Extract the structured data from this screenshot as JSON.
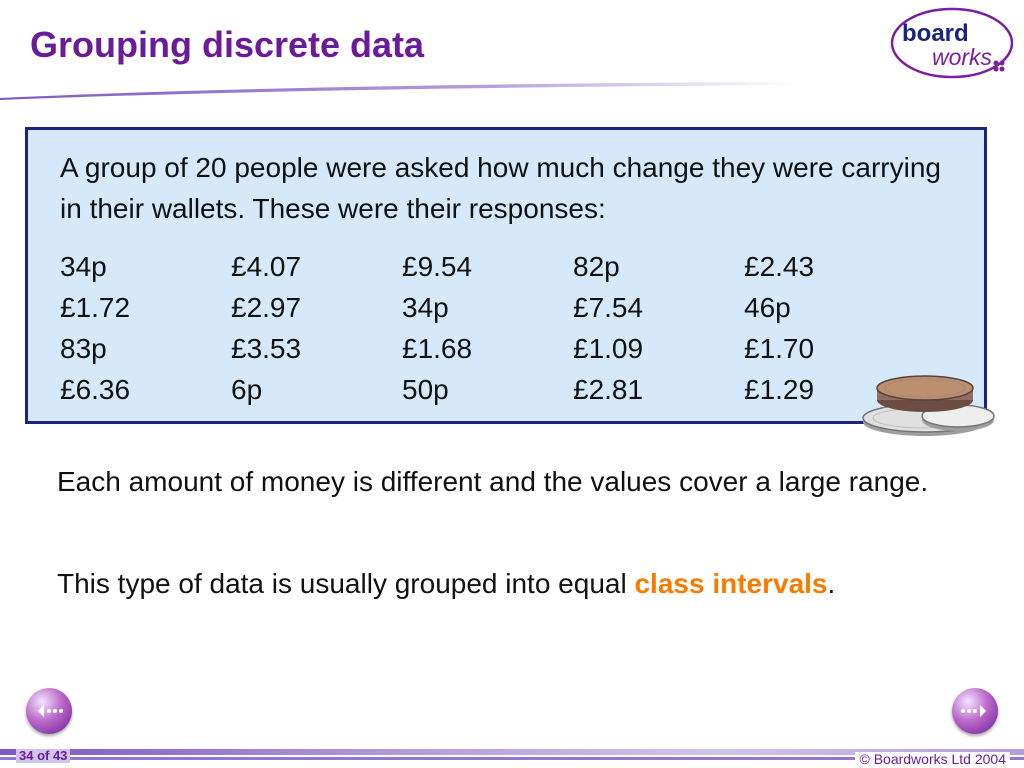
{
  "slide": {
    "title": "Grouping discrete data",
    "logo": {
      "word_top": "board",
      "word_bottom": "works",
      "colors": {
        "top": "#1a237e",
        "bottom": "#7b1fa2",
        "ring": "#7b1fa2"
      }
    }
  },
  "data_box": {
    "intro": "A group of 20 people were asked how much change they were carrying in their wallets. These were their responses:",
    "values": [
      [
        "34p",
        "£4.07",
        "£9.54",
        "82p",
        "£2.43"
      ],
      [
        "£1.72",
        "£2.97",
        "34p",
        "£7.54",
        "46p"
      ],
      [
        "83p",
        "£3.53",
        "£1.68",
        "£1.09",
        "£1.70"
      ],
      [
        "£6.36",
        "6p",
        "50p",
        "£2.81",
        "£1.29"
      ]
    ],
    "image": "coins-icon"
  },
  "body": {
    "para1": "Each amount of money is different and the values cover a large range.",
    "para2_prefix": "This type of data is usually grouped into equal ",
    "para2_highlight": "class intervals",
    "para2_suffix": "."
  },
  "footer": {
    "page": "34 of 43",
    "copyright": "© Boardworks Ltd 2004"
  },
  "colors": {
    "title": "#6a1b9a",
    "box_fill": "#d6e9fb",
    "box_border": "#1a237e",
    "highlight": "#f57c00"
  }
}
